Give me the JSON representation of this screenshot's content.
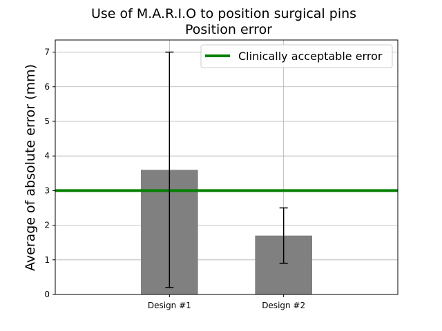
{
  "chart_data": {
    "type": "bar",
    "title": "Use of M.A.R.I.O to position surgical pins",
    "subtitle": "Position error",
    "xlabel": "",
    "ylabel": "Average of absolute error (mm)",
    "categories": [
      "Design #1",
      "Design #2"
    ],
    "values": [
      3.6,
      1.7
    ],
    "error_low": [
      0.2,
      0.9
    ],
    "error_high": [
      7.0,
      2.5
    ],
    "bar_color": "#808080",
    "xlim": [
      -1,
      2
    ],
    "ylim": [
      0,
      7.35
    ],
    "yticks": [
      "0",
      "1",
      "2",
      "3",
      "4",
      "5",
      "6",
      "7"
    ],
    "grid": true,
    "reference_line": {
      "label": "Clinically acceptable error",
      "value": 3,
      "color": "#008000"
    },
    "legend_position": "top-right"
  }
}
